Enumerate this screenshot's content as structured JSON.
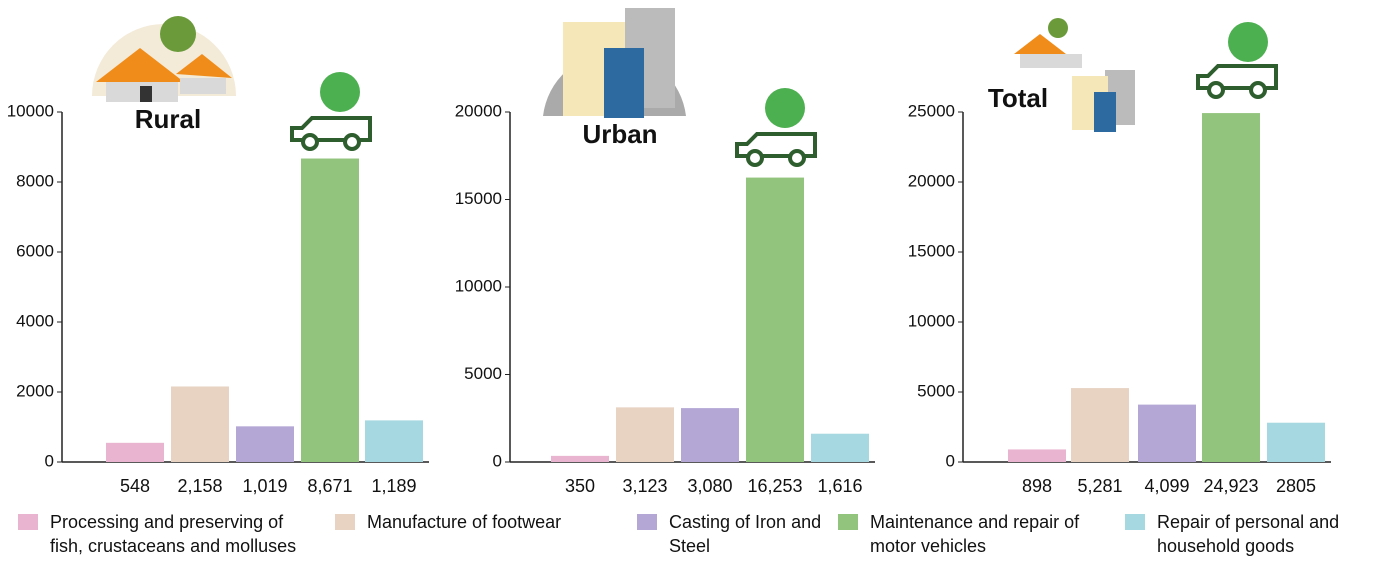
{
  "chart_data": [
    {
      "type": "bar",
      "title": "Rural",
      "values": [
        548,
        2158,
        1019,
        8671,
        1189
      ],
      "value_labels": [
        "548",
        "2,158",
        "1,019",
        "8,671",
        "1,189"
      ],
      "ylim": [
        0,
        10000
      ],
      "yticks": [
        0,
        2000,
        4000,
        6000,
        8000,
        10000
      ]
    },
    {
      "type": "bar",
      "title": "Urban",
      "values": [
        350,
        3123,
        3080,
        16253,
        1616
      ],
      "value_labels": [
        "350",
        "3,123",
        "3,080",
        "16,253",
        "1,616"
      ],
      "ylim": [
        0,
        20000
      ],
      "yticks": [
        0,
        5000,
        10000,
        15000,
        20000
      ]
    },
    {
      "type": "bar",
      "title": "Total",
      "values": [
        898,
        5281,
        4099,
        24923,
        2805
      ],
      "value_labels": [
        "898",
        "5,281",
        "4,099",
        "24,923",
        "2805"
      ],
      "ylim": [
        0,
        25000
      ],
      "yticks": [
        0,
        5000,
        10000,
        15000,
        20000,
        25000
      ]
    }
  ],
  "legend": [
    {
      "name": "Processing and preserving of fish, crustaceans and molluses",
      "color": "#e8b4cf"
    },
    {
      "name": "Manufacture of footwear",
      "color": "#e8d3c3"
    },
    {
      "name": "Casting of Iron and Steel",
      "color": "#b4a7d6"
    },
    {
      "name": "Maintenance and repair of motor vehicles",
      "color": "#93c47d"
    },
    {
      "name": "Repair of personal and household goods",
      "color": "#a5d8e0"
    }
  ]
}
